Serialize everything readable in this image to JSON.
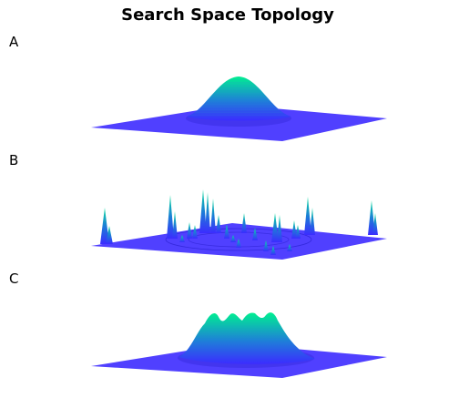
{
  "title": "Search Space Topology",
  "panels": [
    {
      "label": "A",
      "surface": "single-peak"
    },
    {
      "label": "B",
      "surface": "scattered-spikes"
    },
    {
      "label": "C",
      "surface": "multi-peak"
    }
  ],
  "colors": {
    "base": "#5040ff",
    "low": "#3b2cff",
    "mid": "#1e7fd8",
    "high": "#00f090"
  }
}
